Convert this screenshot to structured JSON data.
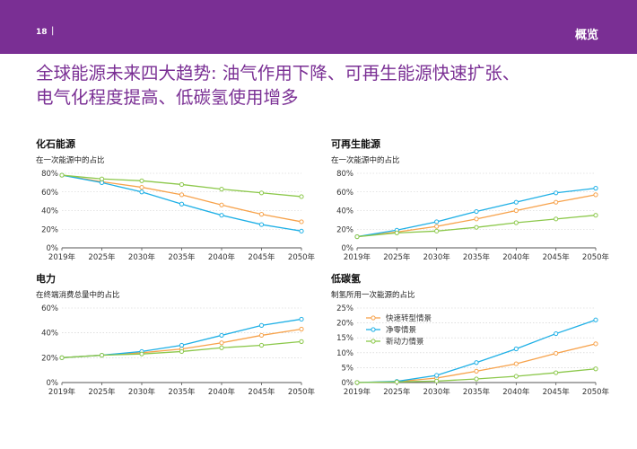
{
  "header": {
    "page_number": "18",
    "separator": "|",
    "section": "概览"
  },
  "title": {
    "line1": "全球能源未来四大趋势: 油气作用下降、可再生能源快速扩张、",
    "line2": "电气化程度提高、低碳氢使用增多"
  },
  "colors": {
    "brand": "#7a2f94",
    "快速转型情景": "#f7a24b",
    "净零情景": "#1fb0e6",
    "新动力情景": "#8cc84b",
    "grid": "#cccccc"
  },
  "chart_data": [
    {
      "id": "fossil",
      "type": "line",
      "title": "化石能源",
      "subtitle": "在一次能源中的占比",
      "x": [
        "2019年",
        "2025年",
        "2030年",
        "2035年",
        "2040年",
        "2045年",
        "2050年"
      ],
      "yticks": [
        "0%",
        "20%",
        "40%",
        "60%",
        "80%"
      ],
      "ylim": [
        0,
        80
      ],
      "grid": true,
      "series": [
        {
          "name": "快速转型情景",
          "values": [
            78,
            71,
            65,
            57,
            46,
            36,
            28
          ]
        },
        {
          "name": "净零情景",
          "values": [
            78,
            70,
            60,
            47,
            35,
            25,
            18
          ]
        },
        {
          "name": "新动力情景",
          "values": [
            78,
            74,
            72,
            68,
            63,
            59,
            55
          ]
        }
      ]
    },
    {
      "id": "renewables",
      "type": "line",
      "title": "可再生能源",
      "subtitle": "在一次能源中的占比",
      "x": [
        "2019年",
        "2025年",
        "2030年",
        "2035年",
        "2040年",
        "2045年",
        "2050年"
      ],
      "yticks": [
        "0%",
        "20%",
        "40%",
        "60%",
        "80%"
      ],
      "ylim": [
        0,
        80
      ],
      "grid": true,
      "series": [
        {
          "name": "快速转型情景",
          "values": [
            12,
            17,
            23,
            31,
            40,
            49,
            57
          ]
        },
        {
          "name": "净零情景",
          "values": [
            12,
            19,
            28,
            39,
            49,
            59,
            64
          ]
        },
        {
          "name": "新动力情景",
          "values": [
            12,
            16,
            18,
            22,
            27,
            31,
            35
          ]
        }
      ]
    },
    {
      "id": "electricity",
      "type": "line",
      "title": "电力",
      "subtitle": "在终端消费总量中的占比",
      "x": [
        "2019年",
        "2025年",
        "2030年",
        "2035年",
        "2040年",
        "2045年",
        "2050年"
      ],
      "yticks": [
        "0%",
        "20%",
        "40%",
        "60%"
      ],
      "ylim": [
        0,
        60
      ],
      "grid": true,
      "series": [
        {
          "name": "快速转型情景",
          "values": [
            20,
            22,
            24,
            27,
            32,
            38,
            43
          ]
        },
        {
          "name": "净零情景",
          "values": [
            20,
            22,
            25,
            30,
            38,
            46,
            51
          ]
        },
        {
          "name": "新动力情景",
          "values": [
            20,
            22,
            23,
            25,
            28,
            30,
            33
          ]
        }
      ]
    },
    {
      "id": "hydrogen",
      "type": "line",
      "title": "低碳氢",
      "subtitle": "制氢所用一次能源的占比",
      "x": [
        "2019年",
        "2025年",
        "2030年",
        "2035年",
        "2040年",
        "2045年",
        "2050年"
      ],
      "yticks": [
        "0%",
        "5%",
        "10%",
        "15%",
        "20%",
        "25%"
      ],
      "ylim": [
        0,
        25
      ],
      "grid": true,
      "legend": [
        "快速转型情景",
        "净零情景",
        "新动力情景"
      ],
      "legend_position": "top-left",
      "series": [
        {
          "name": "快速转型情景",
          "values": [
            0,
            0.3,
            1.5,
            3.8,
            6.3,
            9.8,
            13
          ]
        },
        {
          "name": "净零情景",
          "values": [
            0,
            0.4,
            2.4,
            6.7,
            11.3,
            16.4,
            21
          ]
        },
        {
          "name": "新动力情景",
          "values": [
            0,
            0.2,
            0.5,
            1.2,
            2.1,
            3.3,
            4.6
          ]
        }
      ]
    }
  ]
}
